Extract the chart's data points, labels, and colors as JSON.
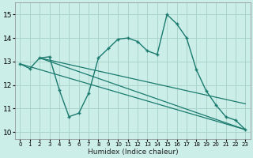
{
  "xlabel": "Humidex (Indice chaleur)",
  "bg_color": "#cceee8",
  "grid_color": "#aad4cc",
  "line_color": "#1a7a6e",
  "xlim": [
    -0.5,
    23.5
  ],
  "ylim": [
    9.7,
    15.5
  ],
  "xticks": [
    0,
    1,
    2,
    3,
    4,
    5,
    6,
    7,
    8,
    9,
    10,
    11,
    12,
    13,
    14,
    15,
    16,
    17,
    18,
    19,
    20,
    21,
    22,
    23
  ],
  "yticks": [
    10,
    11,
    12,
    13,
    14,
    15
  ],
  "main_x": [
    0,
    1,
    2,
    3,
    4,
    5,
    6,
    7,
    8,
    9,
    10,
    11,
    12,
    13,
    14,
    15,
    16,
    17,
    18,
    19,
    20,
    21,
    22,
    23
  ],
  "main_y": [
    12.9,
    12.7,
    13.15,
    13.2,
    11.8,
    10.65,
    10.8,
    11.65,
    13.15,
    13.55,
    13.95,
    14.0,
    13.85,
    13.45,
    13.3,
    15.0,
    14.6,
    14.0,
    12.65,
    11.75,
    11.15,
    10.65,
    10.5,
    10.1
  ],
  "trend1_x": [
    0,
    23
  ],
  "trend1_y": [
    12.9,
    10.1
  ],
  "trend2_x": [
    2,
    23
  ],
  "trend2_y": [
    13.15,
    11.2
  ],
  "trend3_x": [
    2,
    23
  ],
  "trend3_y": [
    13.15,
    10.1
  ]
}
